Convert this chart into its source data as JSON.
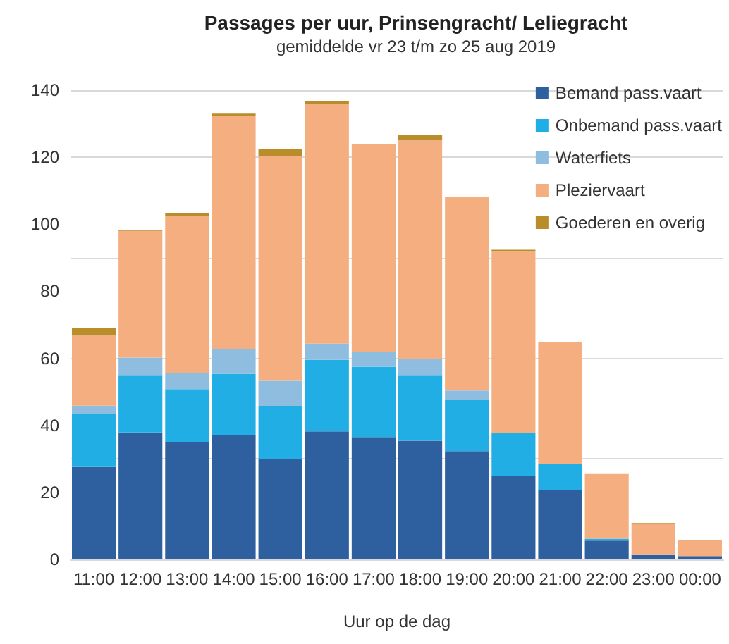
{
  "chart_data": {
    "type": "bar",
    "title": "Passages per uur, Prinsengracht/ Leliegracht",
    "subtitle": "gemiddelde vr 23 t/m zo 25 aug 2019",
    "xlabel": "Uur op de dag",
    "stacked": true,
    "grid": "y",
    "legend": "top right",
    "categories": [
      "11:00",
      "12:00",
      "13:00",
      "14:00",
      "15:00",
      "16:00",
      "17:00",
      "18:00",
      "19:00",
      "20:00",
      "21:00",
      "22:00",
      "23:00",
      "00:00"
    ],
    "ylim": [
      0,
      140
    ],
    "yticks": [
      0,
      20,
      40,
      60,
      80,
      100,
      120,
      140
    ],
    "series": [
      {
        "name": "Bemand pass.vaart",
        "color": "#2e5f9e",
        "values": [
          27.6,
          37.9,
          35.0,
          37.0,
          30.0,
          38.2,
          36.5,
          35.4,
          32.3,
          24.9,
          20.6,
          5.6,
          1.5,
          1.0
        ]
      },
      {
        "name": "Onbemand pass.vaart",
        "color": "#21aee4",
        "values": [
          15.7,
          17.1,
          15.8,
          18.4,
          15.8,
          21.4,
          21.0,
          19.6,
          15.2,
          12.9,
          8.0,
          0.6,
          0,
          0
        ]
      },
      {
        "name": "Waterfiets",
        "color": "#8fbde0",
        "values": [
          2.6,
          5.2,
          4.8,
          7.3,
          7.5,
          4.8,
          4.5,
          4.8,
          2.9,
          0,
          0,
          0,
          0,
          0
        ]
      },
      {
        "name": "Pleziervaart",
        "color": "#f5ae80",
        "values": [
          20.9,
          37.8,
          46.9,
          69.5,
          67.1,
          71.4,
          62.0,
          65.2,
          57.8,
          54.2,
          36.2,
          19.3,
          9.1,
          4.9
        ]
      },
      {
        "name": "Goederen en overig",
        "color": "#b88d2a",
        "values": [
          2.2,
          0.4,
          0.7,
          0.8,
          2.0,
          1.0,
          0,
          1.6,
          0,
          0.4,
          0,
          0,
          0.3,
          0
        ]
      }
    ]
  }
}
